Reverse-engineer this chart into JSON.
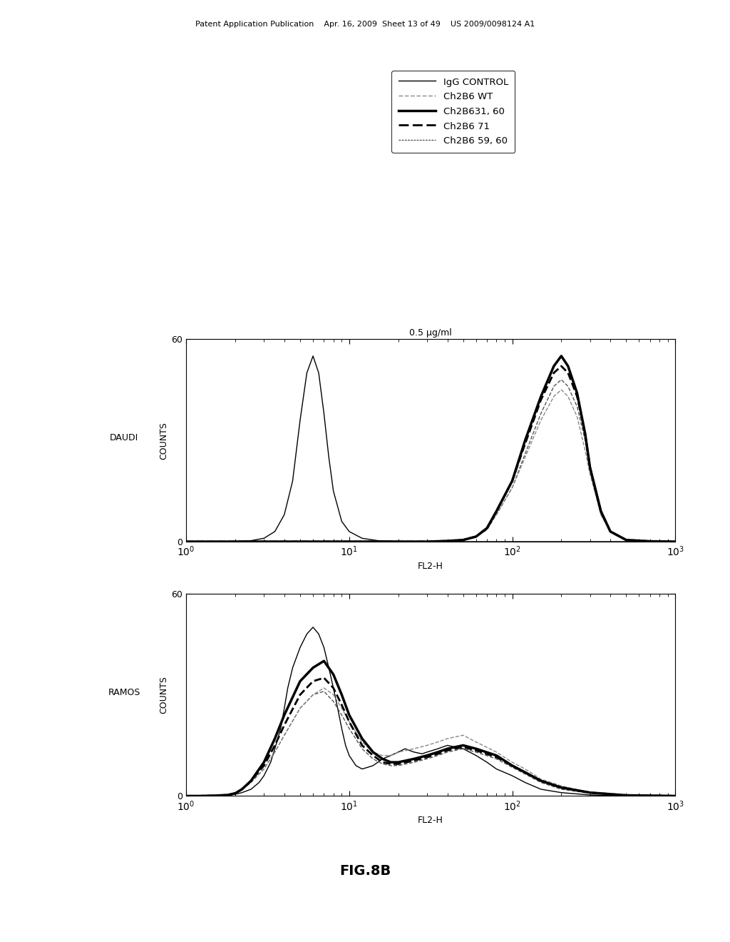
{
  "title_top": "0.5 μg/ml",
  "fig_label": "FIG.8B",
  "patent_header": "Patent Application Publication    Apr. 16, 2009  Sheet 13 of 49    US 2009/0098124 A1",
  "daudi_label": "DAUDI",
  "ramos_label": "RAMOS",
  "ylabel": "COUNTS",
  "xlabel": "FL2-H",
  "ylim": [
    0,
    60
  ],
  "background_color": "#ffffff",
  "legend_entries": [
    {
      "label": "IgG CONTROL",
      "linestyle": "-",
      "linewidth": 1.0,
      "color": "#000000"
    },
    {
      "label": "Ch2B6 WT",
      "linestyle": "--",
      "linewidth": 1.0,
      "color": "#888888"
    },
    {
      "label": "Ch2B631, 60",
      "linestyle": "-",
      "linewidth": 2.5,
      "color": "#000000"
    },
    {
      "label": "Ch2B6 71",
      "linestyle": "--",
      "linewidth": 2.0,
      "color": "#000000"
    },
    {
      "label": "Ch2B6 59, 60",
      "linestyle": "--",
      "linewidth": 1.0,
      "color": "#555555",
      "dashes": [
        2,
        2,
        2,
        2,
        2,
        2
      ]
    }
  ],
  "daudi_curves": {
    "igG_control": {
      "x": [
        1.0,
        1.5,
        2.0,
        2.5,
        3.0,
        3.5,
        4.0,
        4.5,
        5.0,
        5.5,
        6.0,
        6.5,
        7.0,
        7.5,
        8.0,
        9.0,
        10.0,
        12.0,
        15.0,
        20.0,
        30.0,
        50.0,
        100.0,
        200.0,
        500.0,
        1000.0
      ],
      "y": [
        0.0,
        0.0,
        0.1,
        0.3,
        1.0,
        3.0,
        8.0,
        18.0,
        36.0,
        50.0,
        55.0,
        50.0,
        38.0,
        25.0,
        15.0,
        6.0,
        3.0,
        1.0,
        0.3,
        0.1,
        0.0,
        0.0,
        0.0,
        0.0,
        0.0,
        0.0
      ],
      "linestyle": "-",
      "linewidth": 1.0,
      "color": "#000000"
    },
    "ch2b6_wt": {
      "x": [
        1.0,
        5.0,
        10.0,
        20.0,
        30.0,
        40.0,
        50.0,
        60.0,
        70.0,
        80.0,
        100.0,
        120.0,
        150.0,
        180.0,
        200.0,
        220.0,
        250.0,
        280.0,
        300.0,
        350.0,
        400.0,
        500.0,
        700.0,
        1000.0
      ],
      "y": [
        0.0,
        0.0,
        0.0,
        0.0,
        0.0,
        0.2,
        0.5,
        1.5,
        4.0,
        8.0,
        16.0,
        25.0,
        36.0,
        43.0,
        45.0,
        43.0,
        37.0,
        27.0,
        20.0,
        8.0,
        3.0,
        0.5,
        0.1,
        0.0
      ],
      "linestyle": "--",
      "linewidth": 1.0,
      "color": "#888888"
    },
    "ch2b631_60": {
      "x": [
        1.0,
        5.0,
        10.0,
        20.0,
        30.0,
        40.0,
        50.0,
        60.0,
        70.0,
        80.0,
        100.0,
        120.0,
        150.0,
        180.0,
        200.0,
        220.0,
        250.0,
        280.0,
        300.0,
        350.0,
        400.0,
        500.0,
        700.0,
        1000.0
      ],
      "y": [
        0.0,
        0.0,
        0.0,
        0.0,
        0.0,
        0.2,
        0.5,
        1.5,
        4.0,
        9.0,
        18.0,
        30.0,
        43.0,
        52.0,
        55.0,
        52.0,
        44.0,
        32.0,
        22.0,
        9.0,
        3.0,
        0.5,
        0.1,
        0.0
      ],
      "linestyle": "-",
      "linewidth": 2.5,
      "color": "#000000"
    },
    "ch2b6_71": {
      "x": [
        1.0,
        5.0,
        10.0,
        20.0,
        30.0,
        40.0,
        50.0,
        60.0,
        70.0,
        80.0,
        100.0,
        120.0,
        150.0,
        180.0,
        200.0,
        220.0,
        250.0,
        280.0,
        300.0,
        350.0,
        400.0,
        500.0,
        700.0,
        1000.0
      ],
      "y": [
        0.0,
        0.0,
        0.0,
        0.0,
        0.0,
        0.2,
        0.5,
        1.5,
        4.0,
        9.0,
        18.0,
        29.0,
        42.0,
        50.0,
        52.0,
        50.0,
        43.0,
        32.0,
        22.0,
        9.0,
        3.0,
        0.5,
        0.1,
        0.0
      ],
      "linestyle": "--",
      "linewidth": 2.0,
      "color": "#000000"
    },
    "ch2b6_59_60": {
      "x": [
        1.0,
        5.0,
        10.0,
        20.0,
        30.0,
        40.0,
        50.0,
        60.0,
        70.0,
        80.0,
        100.0,
        120.0,
        150.0,
        180.0,
        200.0,
        220.0,
        250.0,
        280.0,
        300.0,
        350.0,
        400.0,
        500.0,
        700.0,
        1000.0
      ],
      "y": [
        0.0,
        0.0,
        0.0,
        0.0,
        0.0,
        0.2,
        0.5,
        1.5,
        3.5,
        8.0,
        16.0,
        26.0,
        38.0,
        46.0,
        48.0,
        46.0,
        40.0,
        30.0,
        21.0,
        8.0,
        3.0,
        0.5,
        0.1,
        0.0
      ],
      "linestyle": "--",
      "linewidth": 1.0,
      "color": "#555555"
    }
  },
  "ramos_curves": {
    "igG_control": {
      "x": [
        1.0,
        1.2,
        1.5,
        1.8,
        2.0,
        2.2,
        2.5,
        2.8,
        3.0,
        3.3,
        3.5,
        3.8,
        4.0,
        4.2,
        4.5,
        5.0,
        5.5,
        6.0,
        6.5,
        7.0,
        7.5,
        8.0,
        8.5,
        9.0,
        9.5,
        10.0,
        11.0,
        12.0,
        13.0,
        14.0,
        15.0,
        16.0,
        18.0,
        20.0,
        22.0,
        25.0,
        28.0,
        30.0,
        35.0,
        40.0,
        50.0,
        60.0,
        70.0,
        80.0,
        100.0,
        120.0,
        150.0,
        200.0,
        300.0,
        500.0,
        1000.0
      ],
      "y": [
        0.0,
        0.0,
        0.0,
        0.2,
        0.5,
        1.0,
        2.0,
        4.0,
        6.0,
        10.0,
        14.0,
        20.0,
        26.0,
        32.0,
        38.0,
        44.0,
        48.0,
        50.0,
        48.0,
        44.0,
        38.0,
        32.0,
        26.0,
        20.0,
        15.0,
        12.0,
        9.0,
        8.0,
        8.5,
        9.0,
        10.0,
        11.0,
        12.0,
        13.0,
        14.0,
        13.0,
        12.5,
        13.0,
        14.0,
        15.0,
        14.0,
        12.0,
        10.0,
        8.0,
        6.0,
        4.0,
        2.0,
        1.0,
        0.3,
        0.0,
        0.0
      ],
      "linestyle": "-",
      "linewidth": 1.0,
      "color": "#000000"
    },
    "ch2b6_wt": {
      "x": [
        1.0,
        1.2,
        1.5,
        1.8,
        2.0,
        2.2,
        2.5,
        3.0,
        3.5,
        4.0,
        5.0,
        6.0,
        7.0,
        8.0,
        9.0,
        10.0,
        12.0,
        14.0,
        16.0,
        18.0,
        20.0,
        25.0,
        30.0,
        35.0,
        40.0,
        50.0,
        60.0,
        80.0,
        100.0,
        120.0,
        150.0,
        200.0,
        300.0,
        500.0,
        1000.0
      ],
      "y": [
        0.0,
        0.0,
        0.1,
        0.3,
        0.8,
        2.0,
        4.0,
        8.0,
        13.0,
        18.0,
        26.0,
        30.0,
        32.0,
        30.0,
        26.0,
        22.0,
        16.0,
        13.0,
        12.0,
        12.0,
        13.0,
        14.0,
        15.0,
        16.0,
        17.0,
        18.0,
        16.0,
        13.0,
        10.0,
        8.0,
        5.0,
        3.0,
        1.0,
        0.2,
        0.0
      ],
      "linestyle": "--",
      "linewidth": 1.0,
      "color": "#888888"
    },
    "ch2b631_60": {
      "x": [
        1.0,
        1.2,
        1.5,
        1.8,
        2.0,
        2.2,
        2.5,
        3.0,
        3.5,
        4.0,
        5.0,
        6.0,
        7.0,
        8.0,
        9.0,
        10.0,
        12.0,
        14.0,
        16.0,
        18.0,
        20.0,
        25.0,
        30.0,
        35.0,
        40.0,
        50.0,
        60.0,
        80.0,
        100.0,
        120.0,
        150.0,
        200.0,
        300.0,
        500.0,
        1000.0
      ],
      "y": [
        0.0,
        0.0,
        0.1,
        0.3,
        0.8,
        2.0,
        4.5,
        10.0,
        17.0,
        24.0,
        34.0,
        38.0,
        40.0,
        36.0,
        30.0,
        24.0,
        17.0,
        13.0,
        11.0,
        10.0,
        10.0,
        11.0,
        12.0,
        13.0,
        14.0,
        15.0,
        14.0,
        12.0,
        9.0,
        7.0,
        4.5,
        2.5,
        1.0,
        0.2,
        0.0
      ],
      "linestyle": "-",
      "linewidth": 2.5,
      "color": "#000000"
    },
    "ch2b6_71": {
      "x": [
        1.0,
        1.2,
        1.5,
        1.8,
        2.0,
        2.2,
        2.5,
        3.0,
        3.5,
        4.0,
        5.0,
        6.0,
        7.0,
        8.0,
        9.0,
        10.0,
        12.0,
        14.0,
        16.0,
        18.0,
        20.0,
        25.0,
        30.0,
        35.0,
        40.0,
        50.0,
        60.0,
        80.0,
        100.0,
        120.0,
        150.0,
        200.0,
        300.0,
        500.0,
        1000.0
      ],
      "y": [
        0.0,
        0.0,
        0.1,
        0.3,
        0.8,
        2.0,
        4.5,
        9.0,
        15.0,
        21.0,
        30.0,
        34.0,
        35.0,
        32.0,
        27.0,
        22.0,
        15.0,
        12.0,
        10.0,
        9.5,
        9.5,
        10.5,
        11.5,
        12.5,
        13.5,
        14.5,
        13.5,
        11.5,
        9.0,
        7.0,
        4.5,
        2.5,
        1.0,
        0.2,
        0.0
      ],
      "linestyle": "--",
      "linewidth": 2.0,
      "color": "#000000"
    },
    "ch2b6_59_60": {
      "x": [
        1.0,
        1.2,
        1.5,
        1.8,
        2.0,
        2.2,
        2.5,
        3.0,
        3.5,
        4.0,
        5.0,
        6.0,
        7.0,
        8.0,
        9.0,
        10.0,
        12.0,
        14.0,
        16.0,
        18.0,
        20.0,
        25.0,
        30.0,
        35.0,
        40.0,
        50.0,
        60.0,
        80.0,
        100.0,
        120.0,
        150.0,
        200.0,
        300.0,
        500.0,
        1000.0
      ],
      "y": [
        0.0,
        0.0,
        0.1,
        0.3,
        0.8,
        2.0,
        4.0,
        8.0,
        13.0,
        18.0,
        26.0,
        30.0,
        31.0,
        28.0,
        24.0,
        20.0,
        14.0,
        11.0,
        9.5,
        9.0,
        9.0,
        10.0,
        11.0,
        12.0,
        13.0,
        14.0,
        13.0,
        11.0,
        8.5,
        6.5,
        4.0,
        2.0,
        0.8,
        0.1,
        0.0
      ],
      "linestyle": "--",
      "linewidth": 1.0,
      "color": "#555555"
    }
  }
}
